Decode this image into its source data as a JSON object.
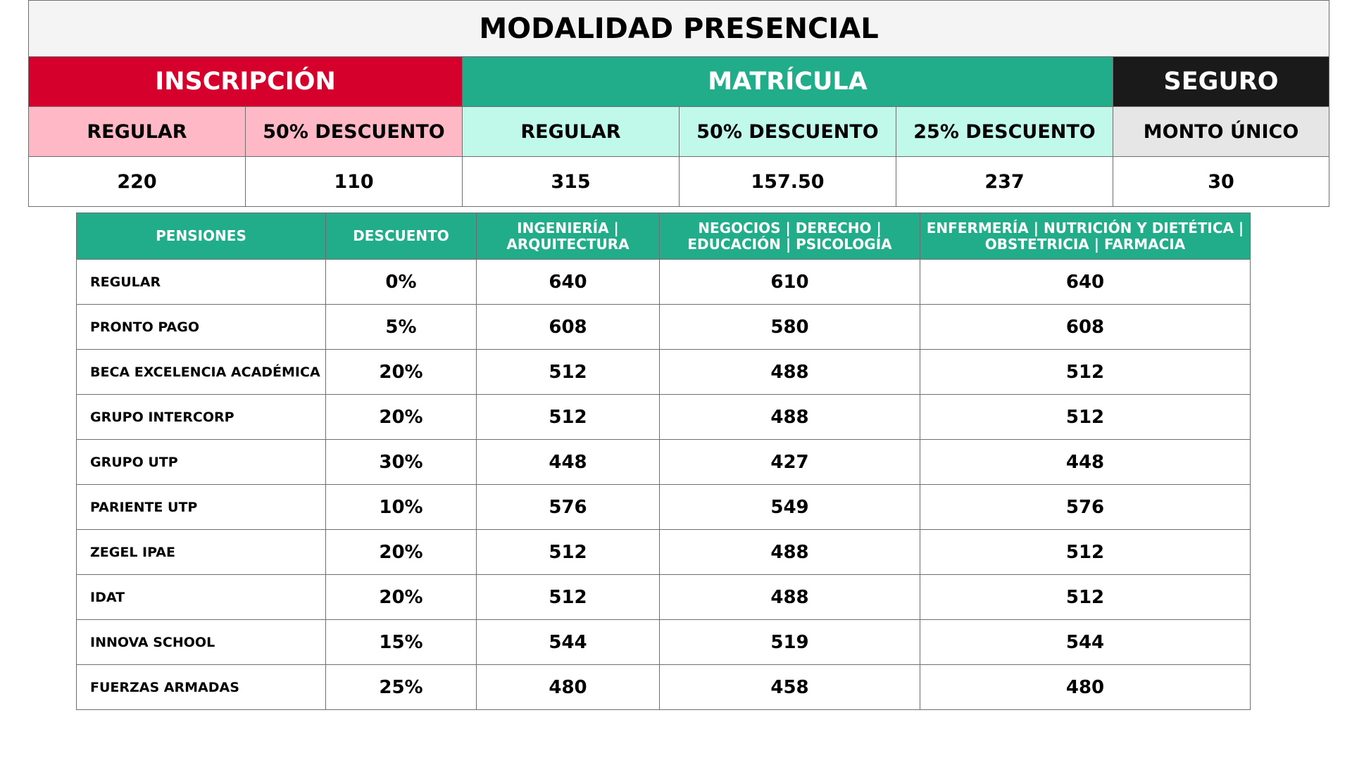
{
  "title": "MODALIDAD PRESENCIAL",
  "sections": {
    "inscripcion": "INSCRIPCIÓN",
    "matricula": "MATRÍCULA",
    "seguro": "SEGURO"
  },
  "subheaders": [
    "REGULAR",
    "50% DESCUENTO",
    "REGULAR",
    "50% DESCUENTO",
    "25% DESCUENTO",
    "MONTO ÚNICO"
  ],
  "values": [
    "220",
    "110",
    "315",
    "157.50",
    "237",
    "30"
  ],
  "pensiones": {
    "headers": [
      "PENSIONES",
      "DESCUENTO",
      "INGENIERÍA | ARQUITECTURA",
      "NEGOCIOS | DERECHO | EDUCACIÓN | PSICOLOGÍA",
      "ENFERMERÍA | NUTRICIÓN Y DIETÉTICA | OBSTETRICIA | FARMACIA"
    ],
    "rows": [
      {
        "name": "REGULAR",
        "descuento": "0%",
        "ingenieria": "640",
        "negocios": "610",
        "enfermeria": "640"
      },
      {
        "name": "PRONTO PAGO",
        "descuento": "5%",
        "ingenieria": "608",
        "negocios": "580",
        "enfermeria": "608"
      },
      {
        "name": "BECA EXCELENCIA ACADÉMICA",
        "descuento": "20%",
        "ingenieria": "512",
        "negocios": "488",
        "enfermeria": "512"
      },
      {
        "name": "GRUPO INTERCORP",
        "descuento": "20%",
        "ingenieria": "512",
        "negocios": "488",
        "enfermeria": "512"
      },
      {
        "name": "GRUPO UTP",
        "descuento": "30%",
        "ingenieria": "448",
        "negocios": "427",
        "enfermeria": "448"
      },
      {
        "name": "PARIENTE UTP",
        "descuento": "10%",
        "ingenieria": "576",
        "negocios": "549",
        "enfermeria": "576"
      },
      {
        "name": "ZEGEL IPAE",
        "descuento": "20%",
        "ingenieria": "512",
        "negocios": "488",
        "enfermeria": "512"
      },
      {
        "name": "IDAT",
        "descuento": "20%",
        "ingenieria": "512",
        "negocios": "488",
        "enfermeria": "512"
      },
      {
        "name": "INNOVA SCHOOL",
        "descuento": "15%",
        "ingenieria": "544",
        "negocios": "519",
        "enfermeria": "544"
      },
      {
        "name": "FUERZAS ARMADAS",
        "descuento": "25%",
        "ingenieria": "480",
        "negocios": "458",
        "enfermeria": "480"
      }
    ]
  },
  "colors": {
    "inscripcion": "#d5002b",
    "matricula": "#21ad8a",
    "seguro": "#1a1a1a",
    "inscripcion_light": "#ffb8c6",
    "matricula_light": "#c0f8ea",
    "seguro_light": "#e6e6e6",
    "pensiones_header": "#21ad8a"
  }
}
